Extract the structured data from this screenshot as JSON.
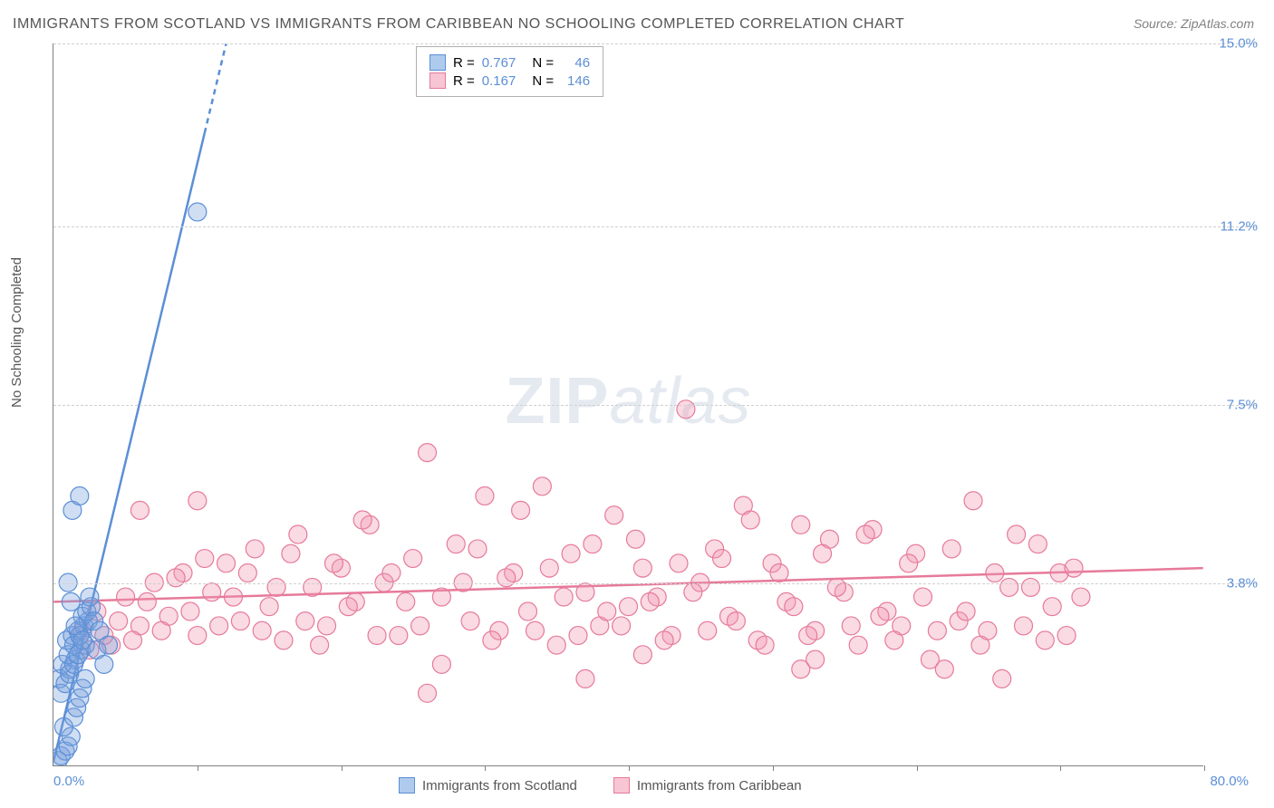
{
  "title": "IMMIGRANTS FROM SCOTLAND VS IMMIGRANTS FROM CARIBBEAN NO SCHOOLING COMPLETED CORRELATION CHART",
  "source": "Source: ZipAtlas.com",
  "y_axis_label": "No Schooling Completed",
  "watermark": {
    "part1": "ZIP",
    "part2": "atlas"
  },
  "chart": {
    "type": "scatter",
    "xlim": [
      0,
      80
    ],
    "ylim": [
      0,
      15
    ],
    "x_ticks": [
      0,
      10,
      20,
      30,
      40,
      50,
      60,
      70,
      80
    ],
    "x_tick_labels": {
      "0": "0.0%",
      "80": "80.0%"
    },
    "y_gridlines": [
      3.8,
      7.5,
      11.2,
      15.0
    ],
    "y_tick_labels": [
      "3.8%",
      "7.5%",
      "11.2%",
      "15.0%"
    ],
    "grid_color": "#d0d0d0",
    "axis_color": "#808080",
    "background_color": "#ffffff",
    "marker_radius": 10,
    "marker_stroke_width": 1.2,
    "trend_line_width": 2.5
  },
  "series": [
    {
      "name": "Immigrants from Scotland",
      "color_fill": "rgba(120,160,220,0.35)",
      "color_stroke": "#5b8fd6",
      "swatch_fill": "#aecbed",
      "swatch_border": "#5b8fd6",
      "R": "0.767",
      "N": "46",
      "trend": {
        "x1": 0,
        "y1": 0.1,
        "x2": 12,
        "y2": 15.0,
        "dash_after_x": 10.5
      },
      "points": [
        [
          0.3,
          0.1
        ],
        [
          0.5,
          0.2
        ],
        [
          0.8,
          0.3
        ],
        [
          1.0,
          0.4
        ],
        [
          1.2,
          0.6
        ],
        [
          0.7,
          0.8
        ],
        [
          1.4,
          1.0
        ],
        [
          1.6,
          1.2
        ],
        [
          1.8,
          1.4
        ],
        [
          2.0,
          1.6
        ],
        [
          0.4,
          1.8
        ],
        [
          1.1,
          2.0
        ],
        [
          1.5,
          2.2
        ],
        [
          1.9,
          2.4
        ],
        [
          2.2,
          2.5
        ],
        [
          0.9,
          2.6
        ],
        [
          1.3,
          2.7
        ],
        [
          1.7,
          2.8
        ],
        [
          2.1,
          2.9
        ],
        [
          2.4,
          3.0
        ],
        [
          0.6,
          2.1
        ],
        [
          1.0,
          2.3
        ],
        [
          1.4,
          2.5
        ],
        [
          1.8,
          2.7
        ],
        [
          2.0,
          3.1
        ],
        [
          0.5,
          1.5
        ],
        [
          0.8,
          1.7
        ],
        [
          1.1,
          1.9
        ],
        [
          1.4,
          2.1
        ],
        [
          1.7,
          2.3
        ],
        [
          2.3,
          3.2
        ],
        [
          2.6,
          3.3
        ],
        [
          1.2,
          3.4
        ],
        [
          1.5,
          2.9
        ],
        [
          2.0,
          2.6
        ],
        [
          1.0,
          3.8
        ],
        [
          1.3,
          5.3
        ],
        [
          1.8,
          5.6
        ],
        [
          2.5,
          3.5
        ],
        [
          2.8,
          3.0
        ],
        [
          3.0,
          2.4
        ],
        [
          3.2,
          2.8
        ],
        [
          3.5,
          2.1
        ],
        [
          3.8,
          2.5
        ],
        [
          10.0,
          11.5
        ],
        [
          2.2,
          1.8
        ]
      ]
    },
    {
      "name": "Immigrants from Caribbean",
      "color_fill": "rgba(240,150,175,0.35)",
      "color_stroke": "#e67a9a",
      "swatch_fill": "#f7c5d3",
      "swatch_border": "#e67a9a",
      "R": "0.167",
      "N": "146",
      "trend": {
        "x1": 0,
        "y1": 3.4,
        "x2": 80,
        "y2": 4.1,
        "dash_after_x": 80
      },
      "points": [
        [
          2,
          2.8
        ],
        [
          3,
          3.2
        ],
        [
          4,
          2.5
        ],
        [
          5,
          3.5
        ],
        [
          6,
          2.9
        ],
        [
          7,
          3.8
        ],
        [
          8,
          3.1
        ],
        [
          9,
          4.0
        ],
        [
          10,
          2.7
        ],
        [
          11,
          3.6
        ],
        [
          12,
          4.2
        ],
        [
          13,
          3.0
        ],
        [
          14,
          4.5
        ],
        [
          15,
          3.3
        ],
        [
          16,
          2.6
        ],
        [
          17,
          4.8
        ],
        [
          18,
          3.7
        ],
        [
          6,
          5.3
        ],
        [
          19,
          2.9
        ],
        [
          20,
          4.1
        ],
        [
          21,
          3.4
        ],
        [
          22,
          5.0
        ],
        [
          23,
          3.8
        ],
        [
          24,
          2.7
        ],
        [
          25,
          4.3
        ],
        [
          26,
          6.5
        ],
        [
          27,
          3.5
        ],
        [
          28,
          4.6
        ],
        [
          29,
          3.0
        ],
        [
          30,
          5.6
        ],
        [
          31,
          2.8
        ],
        [
          32,
          4.0
        ],
        [
          33,
          3.2
        ],
        [
          34,
          5.8
        ],
        [
          35,
          2.5
        ],
        [
          36,
          4.4
        ],
        [
          37,
          3.6
        ],
        [
          38,
          2.9
        ],
        [
          39,
          5.2
        ],
        [
          40,
          3.3
        ],
        [
          2.5,
          2.4
        ],
        [
          3.5,
          2.7
        ],
        [
          4.5,
          3.0
        ],
        [
          5.5,
          2.6
        ],
        [
          6.5,
          3.4
        ],
        [
          7.5,
          2.8
        ],
        [
          8.5,
          3.9
        ],
        [
          9.5,
          3.2
        ],
        [
          10.5,
          4.3
        ],
        [
          11.5,
          2.9
        ],
        [
          41,
          4.1
        ],
        [
          42,
          3.5
        ],
        [
          43,
          2.7
        ],
        [
          44,
          7.4
        ],
        [
          45,
          3.8
        ],
        [
          46,
          4.5
        ],
        [
          47,
          3.1
        ],
        [
          48,
          5.4
        ],
        [
          49,
          2.6
        ],
        [
          50,
          4.2
        ],
        [
          51,
          3.4
        ],
        [
          52,
          5.0
        ],
        [
          53,
          2.8
        ],
        [
          54,
          4.7
        ],
        [
          55,
          3.6
        ],
        [
          56,
          2.5
        ],
        [
          57,
          4.9
        ],
        [
          58,
          3.2
        ],
        [
          59,
          2.9
        ],
        [
          60,
          4.4
        ],
        [
          52,
          2.0
        ],
        [
          53,
          2.2
        ],
        [
          61,
          2.2
        ],
        [
          62,
          2.0
        ],
        [
          26,
          1.5
        ],
        [
          27,
          2.1
        ],
        [
          37,
          1.8
        ],
        [
          41,
          2.3
        ],
        [
          67,
          4.8
        ],
        [
          68,
          3.7
        ],
        [
          12.5,
          3.5
        ],
        [
          13.5,
          4.0
        ],
        [
          14.5,
          2.8
        ],
        [
          15.5,
          3.7
        ],
        [
          16.5,
          4.4
        ],
        [
          17.5,
          3.0
        ],
        [
          18.5,
          2.5
        ],
        [
          19.5,
          4.2
        ],
        [
          20.5,
          3.3
        ],
        [
          21.5,
          5.1
        ],
        [
          63,
          3.0
        ],
        [
          64,
          5.5
        ],
        [
          65,
          2.8
        ],
        [
          66,
          1.8
        ],
        [
          22.5,
          2.7
        ],
        [
          23.5,
          4.0
        ],
        [
          24.5,
          3.4
        ],
        [
          25.5,
          2.9
        ],
        [
          69,
          2.6
        ],
        [
          70,
          4.0
        ],
        [
          28.5,
          3.8
        ],
        [
          29.5,
          4.5
        ],
        [
          30.5,
          2.6
        ],
        [
          31.5,
          3.9
        ],
        [
          32.5,
          5.3
        ],
        [
          33.5,
          2.8
        ],
        [
          34.5,
          4.1
        ],
        [
          35.5,
          3.5
        ],
        [
          36.5,
          2.7
        ],
        [
          37.5,
          4.6
        ],
        [
          44.5,
          3.6
        ],
        [
          45.5,
          2.8
        ],
        [
          46.5,
          4.3
        ],
        [
          47.5,
          3.0
        ],
        [
          48.5,
          5.1
        ],
        [
          49.5,
          2.5
        ],
        [
          50.5,
          4.0
        ],
        [
          51.5,
          3.3
        ],
        [
          52.5,
          2.7
        ],
        [
          53.5,
          4.4
        ],
        [
          54.5,
          3.7
        ],
        [
          55.5,
          2.9
        ],
        [
          56.5,
          4.8
        ],
        [
          57.5,
          3.1
        ],
        [
          58.5,
          2.6
        ],
        [
          59.5,
          4.2
        ],
        [
          10,
          5.5
        ],
        [
          38.5,
          3.2
        ],
        [
          39.5,
          2.9
        ],
        [
          40.5,
          4.7
        ],
        [
          41.5,
          3.4
        ],
        [
          42.5,
          2.6
        ],
        [
          43.5,
          4.2
        ],
        [
          60.5,
          3.5
        ],
        [
          61.5,
          2.8
        ],
        [
          62.5,
          4.5
        ],
        [
          63.5,
          3.2
        ],
        [
          64.5,
          2.5
        ],
        [
          65.5,
          4.0
        ],
        [
          66.5,
          3.7
        ],
        [
          67.5,
          2.9
        ],
        [
          68.5,
          4.6
        ],
        [
          69.5,
          3.3
        ],
        [
          70.5,
          2.7
        ],
        [
          71,
          4.1
        ],
        [
          71.5,
          3.5
        ]
      ]
    }
  ],
  "legend_stats": {
    "R_label": "R =",
    "N_label": "N ="
  },
  "legend_bottom": [
    {
      "label": "Immigrants from Scotland"
    },
    {
      "label": "Immigrants from Caribbean"
    }
  ]
}
